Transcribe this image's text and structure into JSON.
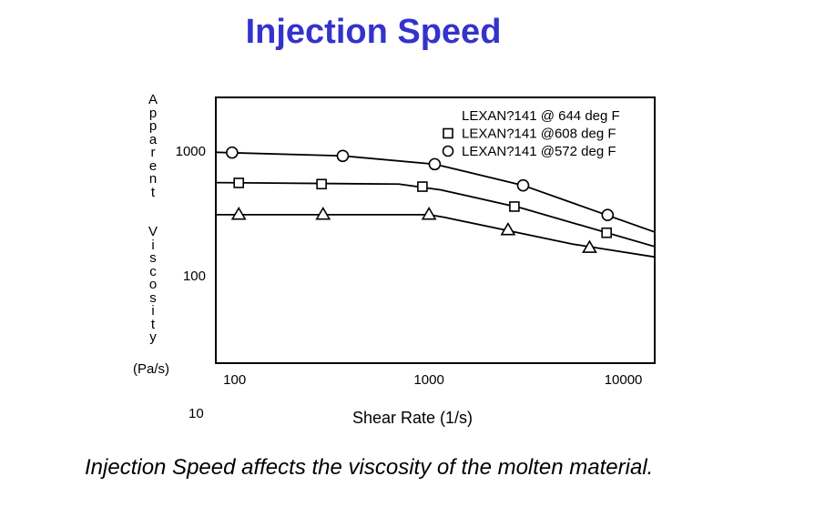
{
  "chart_data": {
    "type": "line",
    "title": "Injection Speed",
    "ylabel": "Apparent  Viscosity",
    "yunit": "(Pa/s)",
    "xlabel": "Shear Rate (1/s)",
    "xscale": "log",
    "yscale": "log",
    "xlim": [
      80,
      14500
    ],
    "ylim": [
      20,
      2700
    ],
    "x_ticks": [
      {
        "value": 100,
        "label": "100"
      },
      {
        "value": 1000,
        "label": "1000"
      },
      {
        "value": 10000,
        "label": "10000"
      }
    ],
    "y_ticks": [
      {
        "value": 100,
        "label": "100"
      },
      {
        "value": 1000,
        "label": "1000"
      }
    ],
    "extra_tick_label": "10",
    "legend_position": "top-right",
    "series": [
      {
        "name": "LEXAN?141 @ 644 deg F",
        "marker": "triangle",
        "marker_x": [
          105,
          285,
          1000,
          2550,
          6700
        ],
        "marker_y": [
          310,
          310,
          310,
          233,
          168
        ],
        "line_x": [
          80,
          1000,
          1200,
          5500,
          14500
        ],
        "line_y": [
          310,
          310,
          295,
          180,
          142
        ]
      },
      {
        "name": "LEXAN?141 @608 deg F",
        "marker": "square",
        "marker_x": [
          105,
          280,
          925,
          2750,
          8200
        ],
        "marker_y": [
          557,
          545,
          520,
          360,
          222
        ],
        "line_x": [
          80,
          700,
          1150,
          3000,
          14500
        ],
        "line_y": [
          560,
          545,
          490,
          350,
          172
        ]
      },
      {
        "name": "LEXAN?141 @572 deg F",
        "marker": "circle",
        "marker_x": [
          97,
          360,
          1070,
          3050,
          8300
        ],
        "marker_y": [
          975,
          917,
          787,
          532,
          308
        ],
        "line_x": [
          80,
          360,
          1070,
          3050,
          14500
        ],
        "line_y": [
          980,
          917,
          787,
          532,
          225
        ]
      }
    ]
  },
  "page": {
    "title": "Injection Speed",
    "caption": "Injection Speed affects the viscosity of the molten material."
  }
}
